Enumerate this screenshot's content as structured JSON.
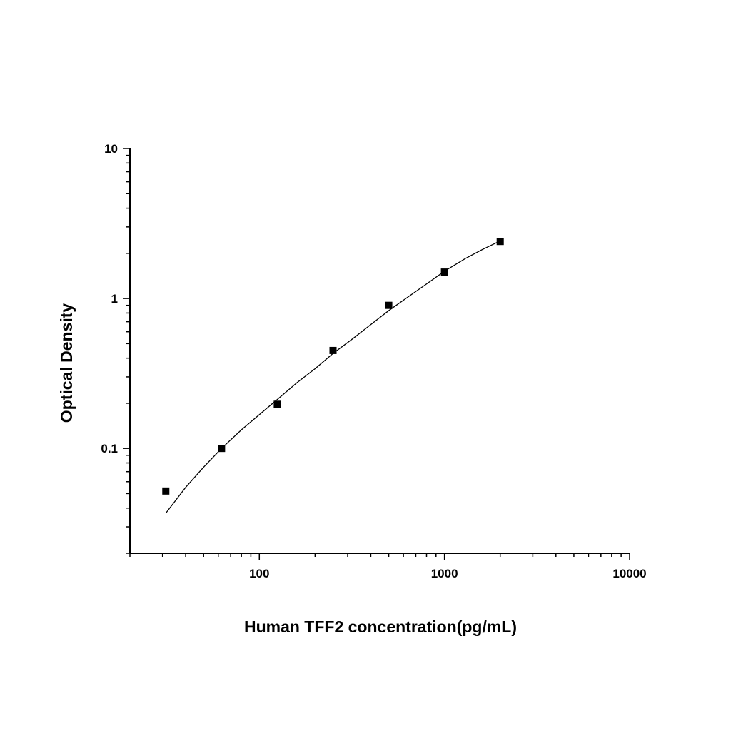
{
  "chart_data": {
    "type": "scatter",
    "title": "",
    "xlabel": "Human TFF2 concentration(pg/mL)",
    "ylabel": "Optical Density",
    "x_scale": "log",
    "y_scale": "log",
    "xlim": [
      20,
      10000
    ],
    "ylim": [
      0.02,
      10
    ],
    "x_ticks": [
      {
        "value": 100,
        "label": "100"
      },
      {
        "value": 1000,
        "label": "1000"
      },
      {
        "value": 10000,
        "label": "10000"
      }
    ],
    "y_ticks": [
      {
        "value": 0.1,
        "label": "0.1"
      },
      {
        "value": 1,
        "label": "1"
      },
      {
        "value": 10,
        "label": "10"
      }
    ],
    "grid": false,
    "legend": "none",
    "marker": "square",
    "color": "#000000",
    "series": [
      {
        "x": [
          31.25,
          62.5,
          125,
          250,
          500,
          1000,
          2000
        ],
        "y": [
          0.052,
          0.1,
          0.197,
          0.45,
          0.9,
          1.5,
          2.4
        ]
      }
    ],
    "fit_curve": {
      "x": [
        31.25,
        40,
        50,
        62.5,
        80,
        100,
        125,
        160,
        200,
        250,
        320,
        400,
        500,
        640,
        800,
        1000,
        1300,
        1600,
        2000
      ],
      "y": [
        0.037,
        0.055,
        0.075,
        0.1,
        0.133,
        0.168,
        0.212,
        0.275,
        0.34,
        0.43,
        0.54,
        0.67,
        0.83,
        1.03,
        1.25,
        1.52,
        1.85,
        2.12,
        2.42
      ]
    }
  }
}
